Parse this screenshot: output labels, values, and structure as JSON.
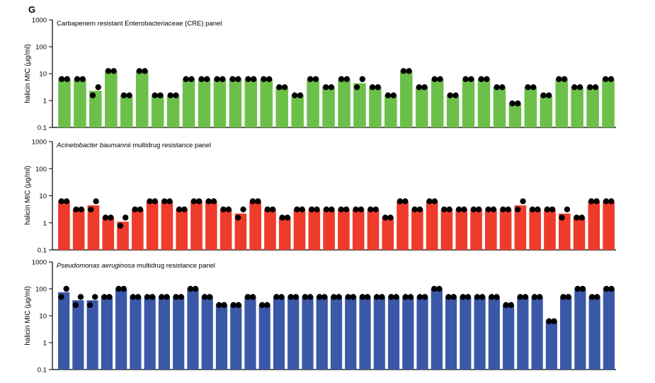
{
  "panel_letter": "G",
  "chart_data": [
    {
      "type": "bar",
      "title_italic": "",
      "title": "Carbapenem resistant Enterobacteriaceae (CRE) panel",
      "ylabel": "halicin MIC (μg/ml)",
      "yscale": "log",
      "ylim": [
        0.1,
        1000
      ],
      "yticks": [
        "0.1",
        "1",
        "10",
        "100",
        "1000"
      ],
      "bar_color": "#6cc04a",
      "dot_color": "#000000",
      "series": [
        {
          "name": "bar",
          "values": [
            6.25,
            6.25,
            2.3,
            12.5,
            1.56,
            12.5,
            1.56,
            1.56,
            6.25,
            6.25,
            6.25,
            6.25,
            6.25,
            6.25,
            3.13,
            1.56,
            6.25,
            3.13,
            6.25,
            4.4,
            3.13,
            1.56,
            12.5,
            3.13,
            6.25,
            1.56,
            6.25,
            6.25,
            3.13,
            0.78,
            3.13,
            1.56,
            6.25,
            3.13,
            3.13,
            6.25
          ]
        },
        {
          "name": "rep1",
          "values": [
            6.25,
            6.25,
            1.56,
            12.5,
            1.56,
            12.5,
            1.56,
            1.56,
            6.25,
            6.25,
            6.25,
            6.25,
            6.25,
            6.25,
            3.13,
            1.56,
            6.25,
            3.13,
            6.25,
            3.13,
            3.13,
            1.56,
            12.5,
            3.13,
            6.25,
            1.56,
            6.25,
            6.25,
            3.13,
            0.78,
            3.13,
            1.56,
            6.25,
            3.13,
            3.13,
            6.25
          ]
        },
        {
          "name": "rep2",
          "values": [
            6.25,
            6.25,
            3.13,
            12.5,
            1.56,
            12.5,
            1.56,
            1.56,
            6.25,
            6.25,
            6.25,
            6.25,
            6.25,
            6.25,
            3.13,
            1.56,
            6.25,
            3.13,
            6.25,
            6.25,
            3.13,
            1.56,
            12.5,
            3.13,
            6.25,
            1.56,
            6.25,
            6.25,
            3.13,
            0.78,
            3.13,
            1.56,
            6.25,
            3.13,
            3.13,
            6.25
          ]
        }
      ]
    },
    {
      "type": "bar",
      "title_italic": "Acinetobacter baumannii",
      "title": " multidrug resistance panel",
      "ylabel": "halicin MIC (μg/ml)",
      "yscale": "log",
      "ylim": [
        0.1,
        1000
      ],
      "yticks": [
        "0.1",
        "1",
        "10",
        "100",
        "1000"
      ],
      "bar_color": "#ef3b2c",
      "dot_color": "#000000",
      "series": [
        {
          "name": "bar",
          "values": [
            6.25,
            3.13,
            4.4,
            1.56,
            1.1,
            3.13,
            6.25,
            6.25,
            3.13,
            6.25,
            6.25,
            3.13,
            2.2,
            6.25,
            3.13,
            1.56,
            3.13,
            3.13,
            3.13,
            3.13,
            3.13,
            3.13,
            1.56,
            6.25,
            3.13,
            6.25,
            3.13,
            3.13,
            3.13,
            3.13,
            3.13,
            4.4,
            3.13,
            3.13,
            2.2,
            1.56,
            6.25,
            6.25
          ]
        },
        {
          "name": "rep1",
          "values": [
            6.25,
            3.13,
            3.13,
            1.56,
            0.78,
            3.13,
            6.25,
            6.25,
            3.13,
            6.25,
            6.25,
            3.13,
            1.56,
            6.25,
            3.13,
            1.56,
            3.13,
            3.13,
            3.13,
            3.13,
            3.13,
            3.13,
            1.56,
            6.25,
            3.13,
            6.25,
            3.13,
            3.13,
            3.13,
            3.13,
            3.13,
            3.13,
            3.13,
            3.13,
            1.56,
            1.56,
            6.25,
            6.25
          ]
        },
        {
          "name": "rep2",
          "values": [
            6.25,
            3.13,
            6.25,
            1.56,
            1.56,
            3.13,
            6.25,
            6.25,
            3.13,
            6.25,
            6.25,
            3.13,
            3.13,
            6.25,
            3.13,
            1.56,
            3.13,
            3.13,
            3.13,
            3.13,
            3.13,
            3.13,
            1.56,
            6.25,
            3.13,
            6.25,
            3.13,
            3.13,
            3.13,
            3.13,
            3.13,
            6.25,
            3.13,
            3.13,
            3.13,
            1.56,
            6.25,
            6.25
          ]
        }
      ]
    },
    {
      "type": "bar",
      "title_italic": "Pseudomonas aeruginosa",
      "title": " multidrug resistance panel",
      "ylabel": "halicin MIC (μg/ml)",
      "yscale": "log",
      "ylim": [
        0.1,
        1000
      ],
      "yticks": [
        "0.1",
        "1",
        "10",
        "100",
        "1000"
      ],
      "bar_color": "#3b58a8",
      "dot_color": "#000000",
      "series": [
        {
          "name": "bar",
          "values": [
            75,
            37.5,
            37.5,
            50,
            100,
            50,
            50,
            50,
            50,
            100,
            50,
            25,
            25,
            50,
            25,
            50,
            50,
            50,
            50,
            50,
            50,
            50,
            50,
            50,
            50,
            50,
            100,
            50,
            50,
            50,
            50,
            25,
            50,
            50,
            6.25,
            50,
            100,
            50,
            100
          ]
        },
        {
          "name": "rep1",
          "values": [
            50,
            25,
            25,
            50,
            100,
            50,
            50,
            50,
            50,
            100,
            50,
            25,
            25,
            50,
            25,
            50,
            50,
            50,
            50,
            50,
            50,
            50,
            50,
            50,
            50,
            50,
            100,
            50,
            50,
            50,
            50,
            25,
            50,
            50,
            6.25,
            50,
            100,
            50,
            100
          ]
        },
        {
          "name": "rep2",
          "values": [
            100,
            50,
            50,
            50,
            100,
            50,
            50,
            50,
            50,
            100,
            50,
            25,
            25,
            50,
            25,
            50,
            50,
            50,
            50,
            50,
            50,
            50,
            50,
            50,
            50,
            50,
            100,
            50,
            50,
            50,
            50,
            25,
            50,
            50,
            6.25,
            50,
            100,
            50,
            100
          ]
        }
      ]
    }
  ]
}
